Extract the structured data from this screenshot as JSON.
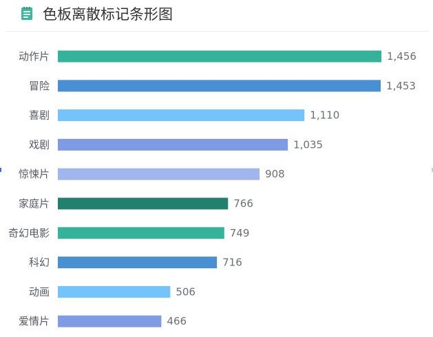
{
  "header": {
    "title": "色板离散标记条形图",
    "icon": "notepad-icon",
    "icon_color": "#3cb89e"
  },
  "chart_data": {
    "type": "bar",
    "orientation": "horizontal",
    "title": "色板离散标记条形图",
    "xlabel": "",
    "ylabel": "",
    "categories": [
      "动作片",
      "冒险",
      "喜剧",
      "戏剧",
      "惊悚片",
      "家庭片",
      "奇幻电影",
      "科幻",
      "动画",
      "爱情片"
    ],
    "values": [
      1456,
      1453,
      1110,
      1035,
      908,
      766,
      749,
      716,
      506,
      466
    ],
    "value_labels": [
      "1,456",
      "1,453",
      "1,110",
      "1,035",
      "908",
      "766",
      "749",
      "716",
      "506",
      "466"
    ],
    "colors": [
      "#35b39a",
      "#4990d2",
      "#74c4fb",
      "#7f9be4",
      "#a2b6ee",
      "#22806f",
      "#35b39a",
      "#4990d2",
      "#74c4fb",
      "#7f9be4"
    ],
    "xlim": [
      0,
      1456
    ],
    "grid": false,
    "legend": "none"
  }
}
